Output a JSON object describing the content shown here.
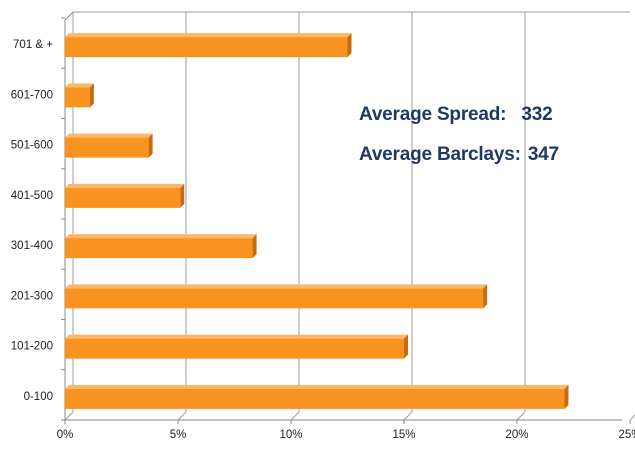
{
  "chart_data": {
    "type": "bar",
    "orientation": "horizontal",
    "categories": [
      "0-100",
      "101-200",
      "201-300",
      "301-400",
      "401-500",
      "501-600",
      "601-700",
      "701 & +"
    ],
    "values": [
      22.1,
      15.0,
      18.5,
      8.3,
      5.1,
      3.7,
      1.1,
      12.5
    ],
    "unit": "%",
    "xlim": [
      0,
      25
    ],
    "x_ticks": [
      "0%",
      "5%",
      "10%",
      "15%",
      "20%",
      "25%"
    ],
    "x_tick_values": [
      0,
      5,
      10,
      15,
      20,
      25
    ],
    "grid": true,
    "style": "3d",
    "bar_color": "#f7931e",
    "bar_side_color": "#c86a0f",
    "bar_top_color": "#fbb868",
    "gridline_color": "#9e9e9e",
    "annotation_color": "#1f3864",
    "annotations": [
      {
        "label": "Average Spread:",
        "value": "332"
      },
      {
        "label": "Average Barclays:",
        "value": "347"
      }
    ]
  }
}
